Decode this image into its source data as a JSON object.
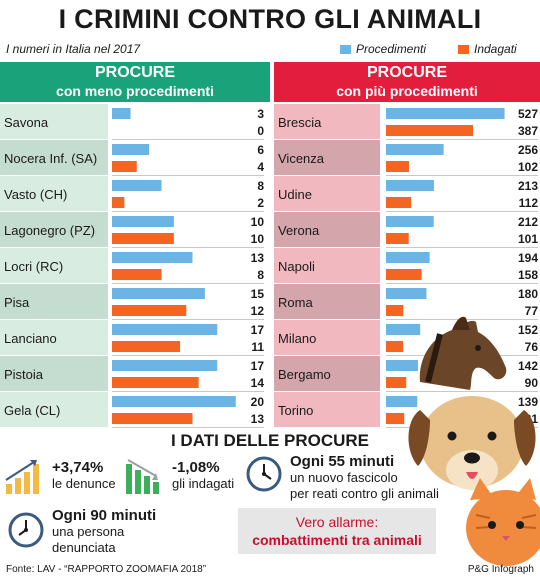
{
  "title": "I CRIMINI CONTRO GLI ANIMALI",
  "subtitle": "I numeri in Italia nel 2017",
  "legend": [
    {
      "label": "Procedimenti",
      "color": "#6cb4e4"
    },
    {
      "label": "Indagati",
      "color": "#f26522"
    }
  ],
  "colors": {
    "left_header": "#1aa37a",
    "right_header": "#e31e3c",
    "left_label_bg": "#d9ece1",
    "right_label_bg": "#f2b8bf",
    "right_label_bg_alt": "#d4a5ab",
    "left_label_bg_alt": "#c5dcd0"
  },
  "panels": {
    "left": {
      "line1": "PROCURE",
      "line2": "con meno procedimenti"
    },
    "right": {
      "line1": "PROCURE",
      "line2": "con più procedimenti"
    }
  },
  "chart_data": [
    {
      "type": "bar",
      "title": "PROCURE con meno procedimenti",
      "categories": [
        "Savona",
        "Nocera Inf. (SA)",
        "Vasto (CH)",
        "Lagonegro (PZ)",
        "Locri (RC)",
        "Pisa",
        "Lanciano",
        "Pistoia",
        "Gela (CL)"
      ],
      "series": [
        {
          "name": "Procedimenti",
          "values": [
            3,
            6,
            8,
            10,
            13,
            15,
            17,
            17,
            20
          ]
        },
        {
          "name": "Indagati",
          "values": [
            0,
            4,
            2,
            10,
            8,
            12,
            11,
            14,
            13
          ]
        }
      ],
      "xlim": [
        0,
        21
      ]
    },
    {
      "type": "bar",
      "title": "PROCURE con più procedimenti",
      "categories": [
        "Brescia",
        "Vicenza",
        "Udine",
        "Verona",
        "Napoli",
        "Roma",
        "Milano",
        "Bergamo",
        "Torino"
      ],
      "series": [
        {
          "name": "Procedimenti",
          "values": [
            527,
            256,
            213,
            212,
            194,
            180,
            152,
            142,
            139
          ]
        },
        {
          "name": "Indagati",
          "values": [
            387,
            102,
            112,
            101,
            158,
            77,
            76,
            90,
            81
          ]
        }
      ],
      "xlim": [
        0,
        560
      ]
    }
  ],
  "section_title": "I DATI DELLE PROCURE",
  "stats": {
    "denunce": {
      "value": "+3,74%",
      "label": "le denunce",
      "icon": "bar-chart-up-icon"
    },
    "indagati": {
      "value": "-1,08%",
      "label": "gli indagati",
      "icon": "bar-chart-down-icon"
    },
    "fascicolo": {
      "value": "Ogni 55 minuti",
      "line2": "un nuovo fascicolo",
      "line3": "per reati contro gli animali",
      "icon": "clock-icon"
    },
    "denunciata": {
      "value": "Ogni 90 minuti",
      "line2": "una persona",
      "line3": "denunciata",
      "icon": "clock-icon"
    }
  },
  "alarm": {
    "line1": "Vero allarme:",
    "line2": "combattimenti tra animali"
  },
  "footer": {
    "source": "Fonte: LAV - “RAPPORTO ZOOMAFIA 2018”",
    "credit": "P&G Infograph"
  }
}
